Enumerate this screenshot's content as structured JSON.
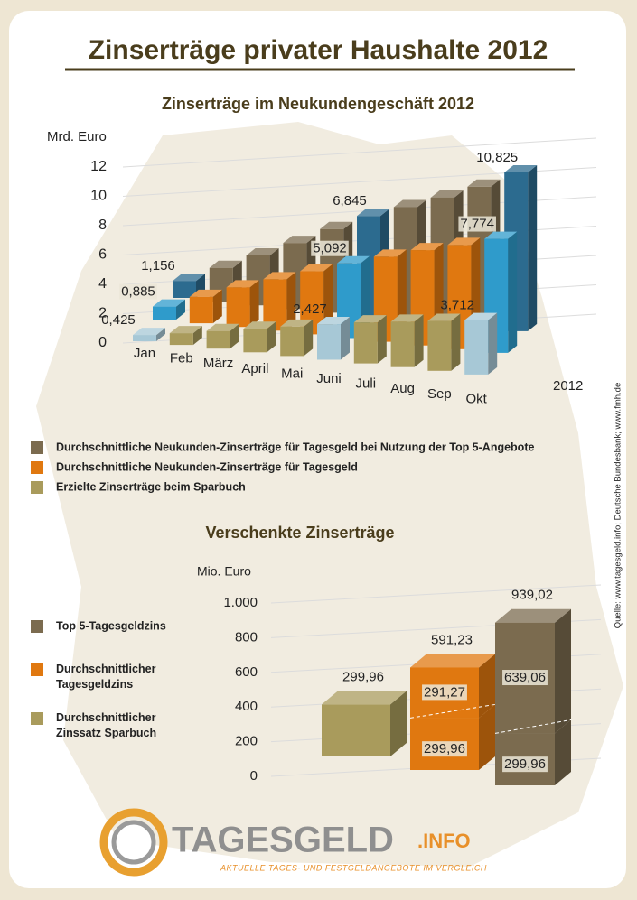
{
  "header": {
    "title": "Zinserträge privater Haushalte 2012"
  },
  "source": "Quelle: www.tagesgeld.info; Deutsche Bundesbank; www.fmh.de",
  "logo": {
    "name": "TAGESGELD",
    "suffix": ".INFO",
    "tagline": "Aktuelle Tages- und Festgeldangebote im Vergleich"
  },
  "chart_data": [
    {
      "type": "bar3d",
      "title": "Zinserträge im Neukundengeschäft 2012",
      "y_label": "Mrd. Euro",
      "depth_label": "2012",
      "categories": [
        "Jan",
        "Feb",
        "März",
        "April",
        "Mai",
        "Juni",
        "Juli",
        "Aug",
        "Sep",
        "Okt"
      ],
      "series": [
        {
          "name": "Durchschnittliche Neukunden-Zinserträge für Tagesgeld bei Nutzung der Top 5-Angebote",
          "color": "#7b6b4f",
          "highlight_color": "#2c6b8f",
          "values": [
            1.156,
            2.3,
            3.4,
            4.5,
            5.7,
            6.845,
            7.7,
            8.6,
            9.6,
            10.825
          ],
          "value_labels": [
            "1,156",
            null,
            null,
            null,
            null,
            "6,845",
            null,
            null,
            null,
            "10,825"
          ]
        },
        {
          "name": "Durchschnittliche Neukunden-Zinserträge für Tagesgeld",
          "color": "#e07810",
          "highlight_color": "#2f9bcb",
          "values": [
            0.885,
            1.8,
            2.7,
            3.5,
            4.3,
            5.092,
            5.8,
            6.5,
            7.1,
            7.774
          ],
          "value_labels": [
            "0,885",
            null,
            null,
            null,
            null,
            "5,092",
            null,
            null,
            null,
            "7,774"
          ]
        },
        {
          "name": "Erzielte Zinserträge beim Sparbuch",
          "color": "#a99b5c",
          "highlight_color": "#a7c8d6",
          "values": [
            0.425,
            0.8,
            1.2,
            1.6,
            2.0,
            2.427,
            2.8,
            3.1,
            3.4,
            3.712
          ],
          "value_labels": [
            "0,425",
            null,
            null,
            null,
            null,
            "2,427",
            null,
            null,
            null,
            "3,712"
          ]
        }
      ],
      "ylim": [
        0,
        12
      ],
      "yticks": [
        0,
        2,
        4,
        6,
        8,
        10,
        12
      ],
      "grid": true
    },
    {
      "type": "stacked3d",
      "title": "Verschenkte Zinserträge",
      "y_label": "Mio. Euro",
      "bars": [
        {
          "name": "Durchschnittlicher Zinssatz Sparbuch",
          "color": "#a99b5c",
          "values": [
            299.96
          ],
          "value_labels": [
            null
          ],
          "total": 299.96,
          "total_label": "299,96"
        },
        {
          "name": "Durchschnittlicher Tagesgeldzins",
          "color": "#e07810",
          "values": [
            299.96,
            291.27
          ],
          "value_labels": [
            "299,96",
            "291,27"
          ],
          "total": 591.23,
          "total_label": "591,23"
        },
        {
          "name": "Top 5-Tagesgeldzins",
          "color": "#7b6b4f",
          "values": [
            299.96,
            639.06
          ],
          "value_labels": [
            "299,96",
            "639,06"
          ],
          "total": 939.02,
          "total_label": "939,02"
        }
      ],
      "ylim": [
        0,
        1000
      ],
      "yticks": [
        0,
        200,
        400,
        600,
        800,
        {
          "value": 1000,
          "label": "1.000"
        }
      ],
      "grid": true
    }
  ]
}
